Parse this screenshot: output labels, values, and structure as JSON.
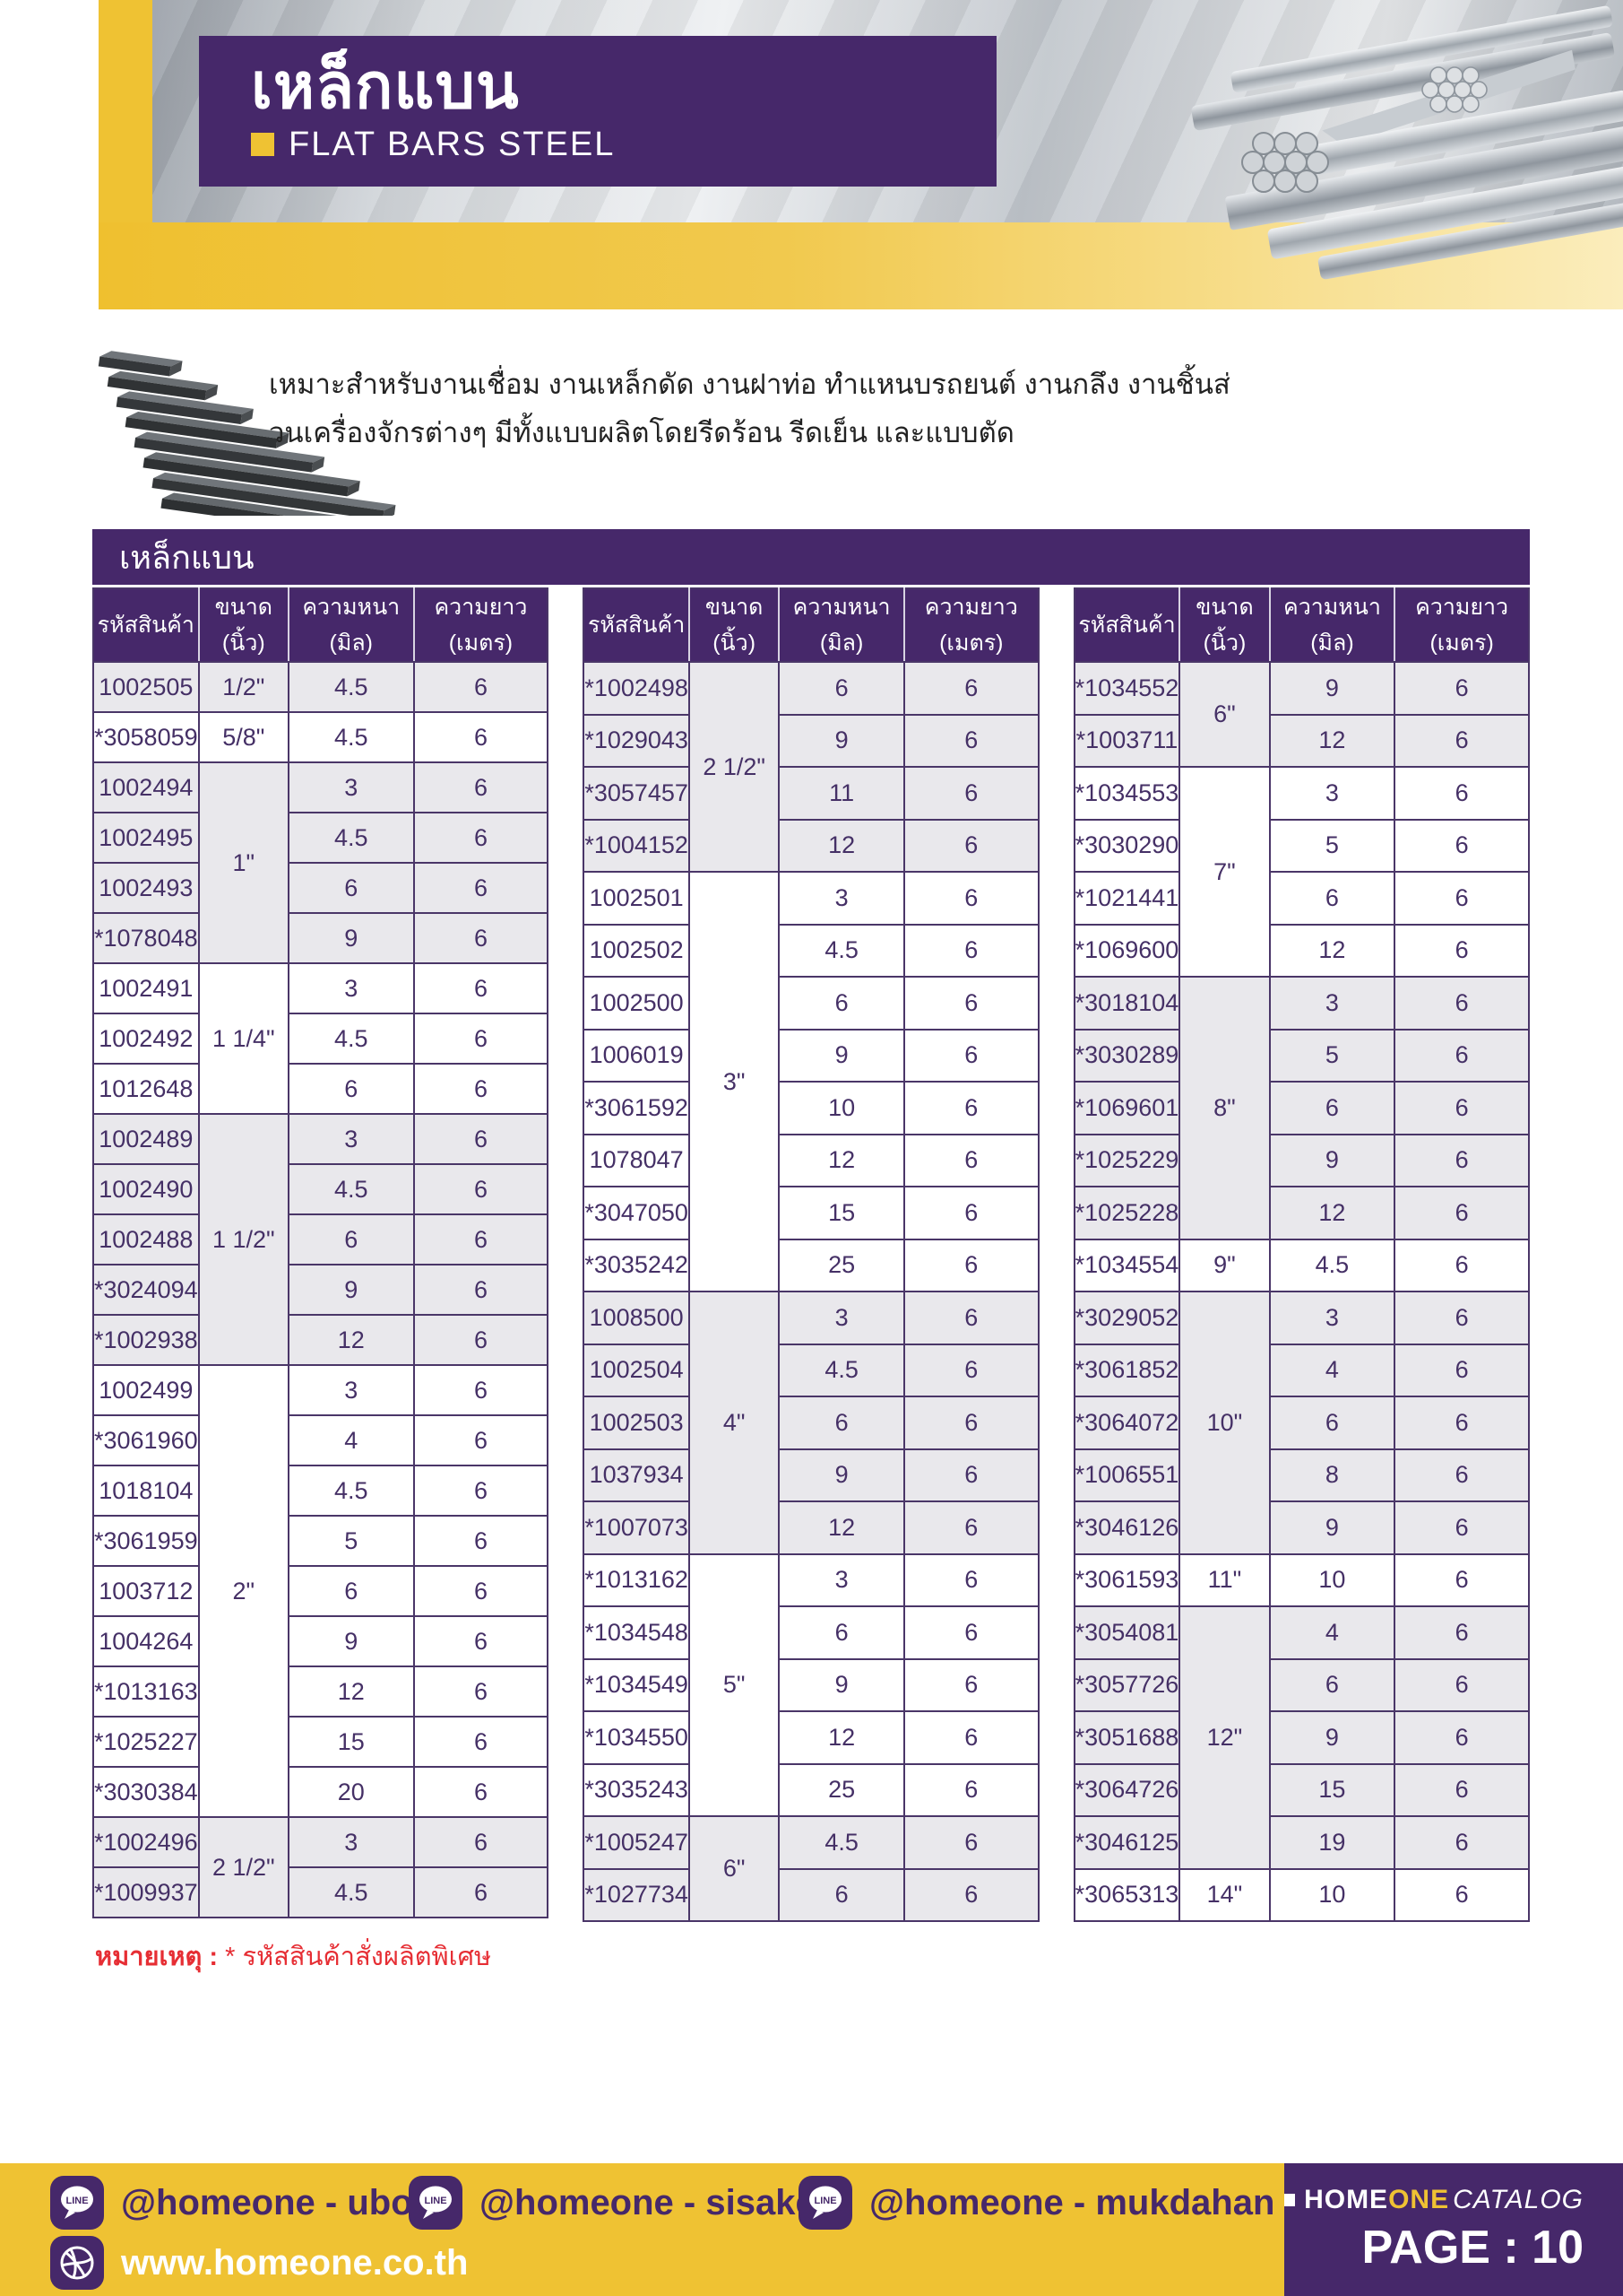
{
  "page": {
    "title_th": "เหล็กแบน",
    "title_en": "FLAT BARS STEEL",
    "description_line1": "เหมาะสำหรับงานเชื่อม งานเหล็กดัด งานฝาท่อ ทำแหนบรถยนต์ งานกลึง งานชิ้นส่",
    "description_line2": "วนเครื่องจักรต่างๆ มีทั้งแบบผลิตโดยรีดร้อน รีดเย็น และแบบตัด",
    "section_title": "เหล็กแบน",
    "note_prefix": "หมายเหตุ :",
    "note_body": " * รหัสสินค้าสั่งผลิตพิเศษ"
  },
  "table": {
    "headers": [
      "รหัสสินค้า",
      "ขนาด (นิ้ว)",
      "ความหนา (มิล)",
      "ความยาว (เมตร)"
    ],
    "columns": [
      {
        "groups": [
          {
            "size": "1/2\"",
            "shaded": true,
            "rows": [
              {
                "code": "1002505",
                "thickness": "4.5",
                "length": "6"
              }
            ]
          },
          {
            "size": "5/8\"",
            "shaded": false,
            "rows": [
              {
                "code": "*3058059",
                "thickness": "4.5",
                "length": "6"
              }
            ]
          },
          {
            "size": "1\"",
            "shaded": true,
            "rows": [
              {
                "code": "1002494",
                "thickness": "3",
                "length": "6"
              },
              {
                "code": "1002495",
                "thickness": "4.5",
                "length": "6"
              },
              {
                "code": "1002493",
                "thickness": "6",
                "length": "6"
              },
              {
                "code": "*1078048",
                "thickness": "9",
                "length": "6"
              }
            ]
          },
          {
            "size": "1 1/4\"",
            "shaded": false,
            "rows": [
              {
                "code": "1002491",
                "thickness": "3",
                "length": "6"
              },
              {
                "code": "1002492",
                "thickness": "4.5",
                "length": "6"
              },
              {
                "code": "1012648",
                "thickness": "6",
                "length": "6"
              }
            ]
          },
          {
            "size": "1 1/2\"",
            "shaded": true,
            "rows": [
              {
                "code": "1002489",
                "thickness": "3",
                "length": "6"
              },
              {
                "code": "1002490",
                "thickness": "4.5",
                "length": "6"
              },
              {
                "code": "1002488",
                "thickness": "6",
                "length": "6"
              },
              {
                "code": "*3024094",
                "thickness": "9",
                "length": "6"
              },
              {
                "code": "*1002938",
                "thickness": "12",
                "length": "6"
              }
            ]
          },
          {
            "size": "2\"",
            "shaded": false,
            "rows": [
              {
                "code": "1002499",
                "thickness": "3",
                "length": "6"
              },
              {
                "code": "*3061960",
                "thickness": "4",
                "length": "6"
              },
              {
                "code": "1018104",
                "thickness": "4.5",
                "length": "6"
              },
              {
                "code": "*3061959",
                "thickness": "5",
                "length": "6"
              },
              {
                "code": "1003712",
                "thickness": "6",
                "length": "6"
              },
              {
                "code": "1004264",
                "thickness": "9",
                "length": "6"
              },
              {
                "code": "*1013163",
                "thickness": "12",
                "length": "6"
              },
              {
                "code": "*1025227",
                "thickness": "15",
                "length": "6"
              },
              {
                "code": "*3030384",
                "thickness": "20",
                "length": "6"
              }
            ]
          },
          {
            "size": "2 1/2\"",
            "shaded": true,
            "rows": [
              {
                "code": "*1002496",
                "thickness": "3",
                "length": "6"
              },
              {
                "code": "*1009937",
                "thickness": "4.5",
                "length": "6"
              }
            ]
          }
        ]
      },
      {
        "groups": [
          {
            "size": "2 1/2\"",
            "shaded": true,
            "rows": [
              {
                "code": "*1002498",
                "thickness": "6",
                "length": "6"
              },
              {
                "code": "*1029043",
                "thickness": "9",
                "length": "6"
              },
              {
                "code": "*3057457",
                "thickness": "11",
                "length": "6"
              },
              {
                "code": "*1004152",
                "thickness": "12",
                "length": "6"
              }
            ]
          },
          {
            "size": "3\"",
            "shaded": false,
            "rows": [
              {
                "code": "1002501",
                "thickness": "3",
                "length": "6"
              },
              {
                "code": "1002502",
                "thickness": "4.5",
                "length": "6"
              },
              {
                "code": "1002500",
                "thickness": "6",
                "length": "6"
              },
              {
                "code": "1006019",
                "thickness": "9",
                "length": "6"
              },
              {
                "code": "*3061592",
                "thickness": "10",
                "length": "6"
              },
              {
                "code": "1078047",
                "thickness": "12",
                "length": "6"
              },
              {
                "code": "*3047050",
                "thickness": "15",
                "length": "6"
              },
              {
                "code": "*3035242",
                "thickness": "25",
                "length": "6"
              }
            ]
          },
          {
            "size": "4\"",
            "shaded": true,
            "rows": [
              {
                "code": "1008500",
                "thickness": "3",
                "length": "6"
              },
              {
                "code": "1002504",
                "thickness": "4.5",
                "length": "6"
              },
              {
                "code": "1002503",
                "thickness": "6",
                "length": "6"
              },
              {
                "code": "1037934",
                "thickness": "9",
                "length": "6"
              },
              {
                "code": "*1007073",
                "thickness": "12",
                "length": "6"
              }
            ]
          },
          {
            "size": "5\"",
            "shaded": false,
            "rows": [
              {
                "code": "*1013162",
                "thickness": "3",
                "length": "6"
              },
              {
                "code": "*1034548",
                "thickness": "6",
                "length": "6"
              },
              {
                "code": "*1034549",
                "thickness": "9",
                "length": "6"
              },
              {
                "code": "*1034550",
                "thickness": "12",
                "length": "6"
              },
              {
                "code": "*3035243",
                "thickness": "25",
                "length": "6"
              }
            ]
          },
          {
            "size": "6\"",
            "shaded": true,
            "rows": [
              {
                "code": "*1005247",
                "thickness": "4.5",
                "length": "6"
              },
              {
                "code": "*1027734",
                "thickness": "6",
                "length": "6"
              }
            ]
          }
        ]
      },
      {
        "groups": [
          {
            "size": "6\"",
            "shaded": true,
            "rows": [
              {
                "code": "*1034552",
                "thickness": "9",
                "length": "6"
              },
              {
                "code": "*1003711",
                "thickness": "12",
                "length": "6"
              }
            ]
          },
          {
            "size": "7\"",
            "shaded": false,
            "rows": [
              {
                "code": "*1034553",
                "thickness": "3",
                "length": "6"
              },
              {
                "code": "*3030290",
                "thickness": "5",
                "length": "6"
              },
              {
                "code": "*1021441",
                "thickness": "6",
                "length": "6"
              },
              {
                "code": "*1069600",
                "thickness": "12",
                "length": "6"
              }
            ]
          },
          {
            "size": "8\"",
            "shaded": true,
            "rows": [
              {
                "code": "*3018104",
                "thickness": "3",
                "length": "6"
              },
              {
                "code": "*3030289",
                "thickness": "5",
                "length": "6"
              },
              {
                "code": "*1069601",
                "thickness": "6",
                "length": "6"
              },
              {
                "code": "*1025229",
                "thickness": "9",
                "length": "6"
              },
              {
                "code": "*1025228",
                "thickness": "12",
                "length": "6"
              }
            ]
          },
          {
            "size": "9\"",
            "shaded": false,
            "rows": [
              {
                "code": "*1034554",
                "thickness": "4.5",
                "length": "6"
              }
            ]
          },
          {
            "size": "10\"",
            "shaded": true,
            "rows": [
              {
                "code": "*3029052",
                "thickness": "3",
                "length": "6"
              },
              {
                "code": "*3061852",
                "thickness": "4",
                "length": "6"
              },
              {
                "code": "*3064072",
                "thickness": "6",
                "length": "6"
              },
              {
                "code": "*1006551",
                "thickness": "8",
                "length": "6"
              },
              {
                "code": "*3046126",
                "thickness": "9",
                "length": "6"
              }
            ]
          },
          {
            "size": "11\"",
            "shaded": false,
            "rows": [
              {
                "code": "*3061593",
                "thickness": "10",
                "length": "6"
              }
            ]
          },
          {
            "size": "12\"",
            "shaded": true,
            "rows": [
              {
                "code": "*3054081",
                "thickness": "4",
                "length": "6"
              },
              {
                "code": "*3057726",
                "thickness": "6",
                "length": "6"
              },
              {
                "code": "*3051688",
                "thickness": "9",
                "length": "6"
              },
              {
                "code": "*3064726",
                "thickness": "15",
                "length": "6"
              },
              {
                "code": "*3046125",
                "thickness": "19",
                "length": "6"
              }
            ]
          },
          {
            "size": "14\"",
            "shaded": false,
            "rows": [
              {
                "code": "*3065313",
                "thickness": "10",
                "length": "6"
              }
            ]
          }
        ]
      }
    ]
  },
  "footer": {
    "line_icon_label": "LINE",
    "line_accounts": [
      {
        "label": "@homeone - ubon"
      },
      {
        "label": "@homeone - sisaket"
      },
      {
        "label": "@homeone - mukdahan"
      }
    ],
    "website": "www.homeone.co.th",
    "brand": {
      "home": "HOME",
      "one": "ONE",
      "catalog": "CATALOG"
    },
    "page_label": "PAGE : 10"
  },
  "colors": {
    "purple": "#46286a",
    "yellow": "#efc233",
    "row_shaded": "#e9e8ec",
    "table_border": "#4a3668",
    "table_text": "#453066",
    "note_red": "#e62e34"
  }
}
